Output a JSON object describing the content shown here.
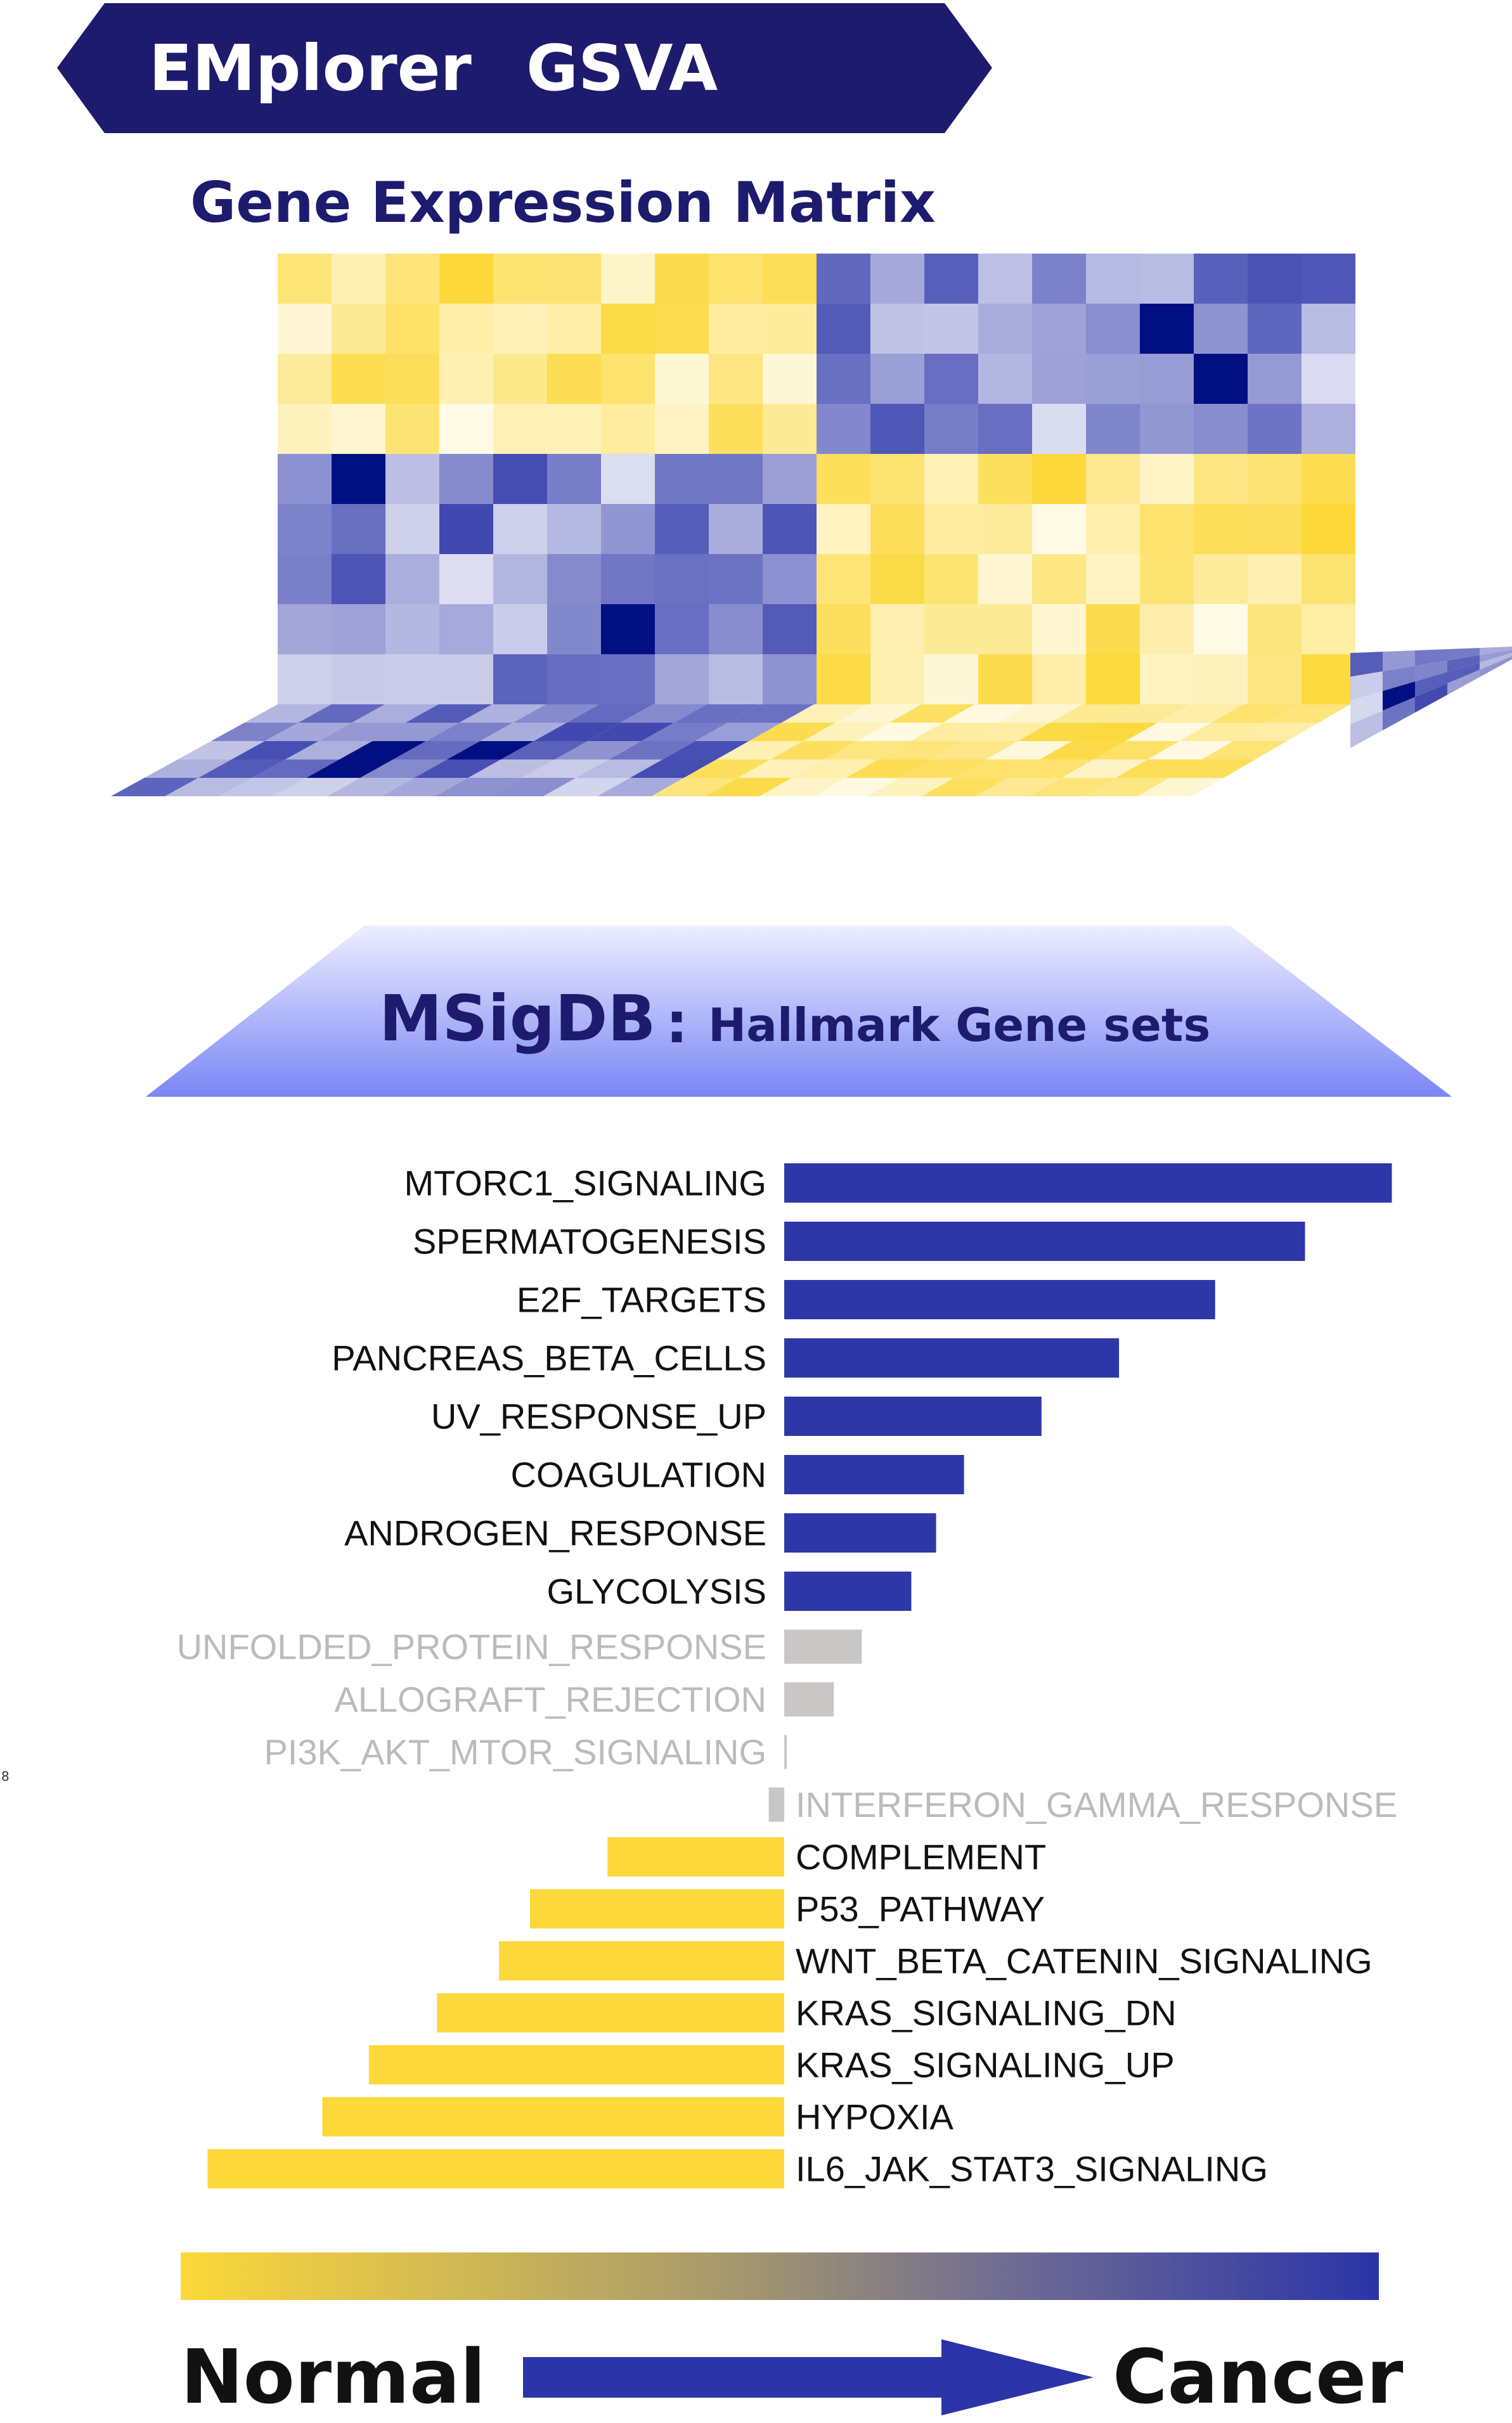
{
  "banner": {
    "part1": "EMplorer",
    "part2": "GSVA",
    "bg_color": "#1c1b6e",
    "text_color": "#ffffff"
  },
  "matrix": {
    "title": "Gene Expression Matrix",
    "yellow_color": "#fcd83a",
    "blue_color": "#2b34a8"
  },
  "database": {
    "name": "MSigDB",
    "separator": ":",
    "subtitle": "Hallmark Gene sets",
    "gradient_top": "#eceeff",
    "gradient_bottom": "#7a86f4"
  },
  "chart_data": {
    "type": "bar",
    "orientation": "horizontal-diverging",
    "categories": [
      "MTORC1_SIGNALING",
      "SPERMATOGENESIS",
      "E2F_TARGETS",
      "PANCREAS_BETA_CELLS",
      "UV_RESPONSE_UP",
      "COAGULATION",
      "ANDROGEN_RESPONSE",
      "GLYCOLYSIS",
      "UNFOLDED_PROTEIN_RESPONSE",
      "ALLOGRAFT_REJECTION",
      "PI3K_AKT_MTOR_SIGNALING",
      "INTERFERON_GAMMA_RESPONSE",
      "COMPLEMENT",
      "P53_PATHWAY",
      "WNT_BETA_CATENIN_SIGNALING",
      "KRAS_SIGNALING_DN",
      "KRAS_SIGNALING_UP",
      "HYPOXIA",
      "IL6_JAK_STAT3_SIGNALING"
    ],
    "values": [
      0.98,
      0.84,
      0.695,
      0.54,
      0.415,
      0.29,
      0.245,
      0.205,
      0.125,
      0.08,
      0.004,
      -0.025,
      -0.285,
      -0.41,
      -0.46,
      -0.56,
      -0.67,
      -0.745,
      -0.93
    ],
    "status": [
      "up",
      "up",
      "up",
      "up",
      "up",
      "up",
      "up",
      "up",
      "ns",
      "ns",
      "ns",
      "ns",
      "down",
      "down",
      "down",
      "down",
      "down",
      "down",
      "down"
    ],
    "colors": {
      "up": "#2e37a8",
      "down": "#fcd83a",
      "ns": "#c9c6c6",
      "ns_label": "#bbbbbb",
      "label": "#111111"
    }
  },
  "legend_bar": {
    "left_label": "Normal",
    "right_label": "Cancer"
  },
  "side_mark": "8"
}
